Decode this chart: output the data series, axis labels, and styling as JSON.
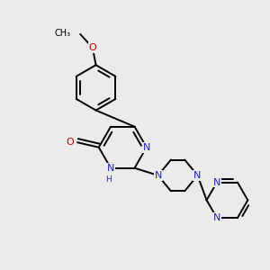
{
  "background_color": "#ebebeb",
  "bond_color": "#000000",
  "nitrogen_color": "#2222cc",
  "oxygen_color": "#cc0000",
  "line_width": 1.4,
  "font_size": 8,
  "fig_width": 3.0,
  "fig_height": 3.0,
  "dpi": 100,
  "xlim": [
    0.0,
    6.5
  ],
  "ylim": [
    0.2,
    6.5
  ]
}
